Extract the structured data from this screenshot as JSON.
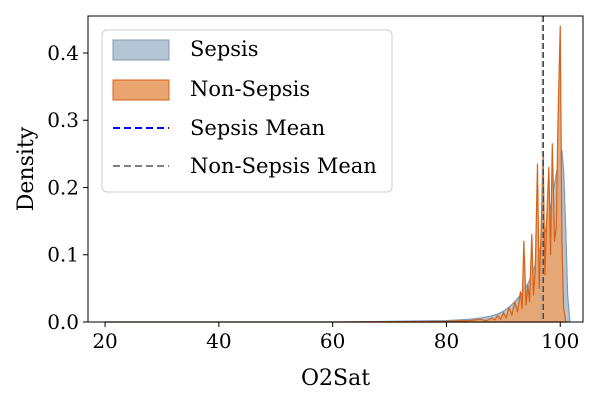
{
  "chart_data": {
    "type": "area",
    "xlabel": "O2Sat",
    "ylabel": "Density",
    "xlim": [
      17,
      104
    ],
    "ylim": [
      0,
      0.455
    ],
    "x_ticks": [
      20,
      40,
      60,
      80,
      100
    ],
    "x_tick_labels": [
      "20",
      "40",
      "60",
      "80",
      "100"
    ],
    "y_ticks": [
      0.0,
      0.1,
      0.2,
      0.3,
      0.4
    ],
    "y_tick_labels": [
      "0.0",
      "0.1",
      "0.2",
      "0.3",
      "0.4"
    ],
    "grid": false,
    "legend_position": "top-left",
    "series": [
      {
        "name": "Sepsis",
        "kind": "density-fill",
        "fill_color": "#b4c5d6",
        "edge_color": "#7f9ab3",
        "x": [
          20,
          60,
          80,
          84,
          86,
          88,
          89,
          90,
          91,
          92,
          93,
          94,
          94.5,
          95,
          95.5,
          96,
          96.5,
          97,
          97.5,
          98,
          98.5,
          99,
          99.3,
          99.6,
          100,
          100.3,
          100.6,
          101,
          101.3,
          101.7
        ],
        "y": [
          0.0,
          0.0,
          0.002,
          0.004,
          0.006,
          0.009,
          0.012,
          0.016,
          0.022,
          0.03,
          0.04,
          0.052,
          0.06,
          0.072,
          0.082,
          0.095,
          0.11,
          0.125,
          0.14,
          0.16,
          0.18,
          0.205,
          0.22,
          0.235,
          0.25,
          0.255,
          0.225,
          0.13,
          0.04,
          0.0
        ]
      },
      {
        "name": "Non-Sepsis",
        "kind": "density-fill",
        "fill_color": "#eaa46f",
        "edge_color": "#d4621a",
        "x": [
          20,
          60,
          80,
          84,
          86,
          87,
          88,
          88.5,
          89,
          89.5,
          90,
          90.5,
          91,
          91.5,
          92,
          92.5,
          93,
          93.3,
          93.6,
          94,
          94.3,
          94.6,
          95,
          95.3,
          95.6,
          96,
          96.3,
          96.6,
          97,
          97.3,
          97.6,
          98,
          98.3,
          98.6,
          99,
          99.3,
          99.6,
          100,
          100.3,
          100.6,
          101
        ],
        "y": [
          0.0,
          0.0,
          0.001,
          0.002,
          0.004,
          0.002,
          0.006,
          0.003,
          0.01,
          0.004,
          0.014,
          0.006,
          0.022,
          0.01,
          0.03,
          0.015,
          0.045,
          0.02,
          0.12,
          0.025,
          0.055,
          0.03,
          0.13,
          0.04,
          0.075,
          0.235,
          0.05,
          0.125,
          0.25,
          0.07,
          0.15,
          0.23,
          0.1,
          0.265,
          0.12,
          0.14,
          0.3,
          0.44,
          0.12,
          0.02,
          0.0
        ]
      },
      {
        "name": "Sepsis Mean",
        "kind": "vline",
        "x_value": 97.0,
        "color": "#0000ff"
      },
      {
        "name": "Non-Sepsis Mean",
        "kind": "vline",
        "x_value": 96.9,
        "color": "#808080"
      }
    ]
  }
}
